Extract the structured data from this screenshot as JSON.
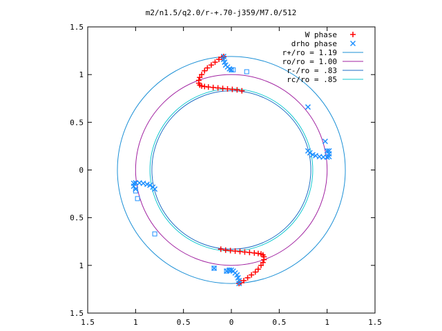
{
  "chart_data": {
    "type": "scatter",
    "title": "m2/n1.5/q2.0/r-+.70-j359/M7.0/512",
    "xlabel": "",
    "ylabel": "",
    "xlim": [
      -1.5,
      1.5
    ],
    "ylim": [
      -1.5,
      1.5
    ],
    "x_ticks": [
      -1.5,
      -1,
      -0.5,
      0,
      0.5,
      1,
      1.5
    ],
    "y_ticks": [
      -1.5,
      -1,
      -0.5,
      0,
      0.5,
      1,
      1.5
    ],
    "x_tick_labels": [
      "1.5",
      "1",
      "0.5",
      "0",
      "0.5",
      "1",
      "1.5"
    ],
    "y_tick_labels": [
      "1.5",
      "1",
      "0.5",
      "0",
      "0.5",
      "1",
      "1.5"
    ],
    "grid": false,
    "legend_position": "top-right",
    "colors": {
      "w_phase": "#ff0000",
      "drho_phase": "#1e90ff",
      "r_plus": "#1a8fd6",
      "ro": "#a020a0",
      "r_minus": "#1b6cc4",
      "rc": "#10c8d0"
    },
    "legend": [
      {
        "label": "W phase",
        "marker": "+",
        "color": "#ff0000"
      },
      {
        "label": "drho phase",
        "marker": "x",
        "color": "#1e90ff"
      },
      {
        "label": "r+/ro = 1.19",
        "marker": "line",
        "color": "#1a8fd6"
      },
      {
        "label": "ro/ro = 1.00",
        "marker": "line",
        "color": "#a020a0"
      },
      {
        "label": "r-/ro = .83",
        "marker": "line",
        "color": "#1b6cc4"
      },
      {
        "label": "rc/ro = .85",
        "marker": "line",
        "color": "#10c8d0"
      }
    ],
    "circles": [
      {
        "name": "r+/ro",
        "r": 1.19,
        "color": "#1a8fd6"
      },
      {
        "name": "ro/ro",
        "r": 1.0,
        "color": "#a020a0"
      },
      {
        "name": "r-/ro",
        "r": 0.83,
        "color": "#1b6cc4"
      },
      {
        "name": "rc/ro",
        "r": 0.85,
        "color": "#10c8d0"
      }
    ],
    "series": [
      {
        "name": "W phase",
        "marker": "+",
        "color": "#ff0000",
        "points": [
          [
            0.11,
            0.83
          ],
          [
            0.06,
            0.84
          ],
          [
            0.01,
            0.845
          ],
          [
            -0.04,
            0.85
          ],
          [
            -0.09,
            0.855
          ],
          [
            -0.14,
            0.86
          ],
          [
            -0.19,
            0.865
          ],
          [
            -0.24,
            0.87
          ],
          [
            -0.28,
            0.875
          ],
          [
            -0.31,
            0.88
          ],
          [
            -0.33,
            0.89
          ],
          [
            -0.34,
            0.91
          ],
          [
            -0.34,
            0.94
          ],
          [
            -0.33,
            0.97
          ],
          [
            -0.31,
            1.0
          ],
          [
            -0.28,
            1.04
          ],
          [
            -0.25,
            1.07
          ],
          [
            -0.21,
            1.1
          ],
          [
            -0.17,
            1.13
          ],
          [
            -0.13,
            1.16
          ],
          [
            -0.1,
            1.18
          ],
          [
            -0.08,
            1.19
          ],
          [
            -0.11,
            -0.83
          ],
          [
            -0.06,
            -0.84
          ],
          [
            -0.01,
            -0.845
          ],
          [
            0.04,
            -0.85
          ],
          [
            0.09,
            -0.855
          ],
          [
            0.14,
            -0.86
          ],
          [
            0.19,
            -0.865
          ],
          [
            0.24,
            -0.87
          ],
          [
            0.28,
            -0.875
          ],
          [
            0.31,
            -0.88
          ],
          [
            0.33,
            -0.89
          ],
          [
            0.34,
            -0.91
          ],
          [
            0.34,
            -0.94
          ],
          [
            0.33,
            -0.97
          ],
          [
            0.31,
            -1.0
          ],
          [
            0.28,
            -1.04
          ],
          [
            0.25,
            -1.07
          ],
          [
            0.21,
            -1.1
          ],
          [
            0.17,
            -1.13
          ],
          [
            0.13,
            -1.16
          ],
          [
            0.1,
            -1.18
          ],
          [
            0.08,
            -1.19
          ]
        ]
      },
      {
        "name": "drho phase",
        "marker": "x",
        "color": "#1e90ff",
        "points": [
          [
            -0.08,
            1.19
          ],
          [
            -0.08,
            1.16
          ],
          [
            -0.07,
            1.13
          ],
          [
            -0.06,
            1.1
          ],
          [
            -0.04,
            1.08
          ],
          [
            -0.02,
            1.06
          ],
          [
            0.0,
            1.05
          ],
          [
            0.08,
            -1.19
          ],
          [
            0.08,
            -1.16
          ],
          [
            0.07,
            -1.13
          ],
          [
            0.06,
            -1.1
          ],
          [
            0.04,
            -1.08
          ],
          [
            0.02,
            -1.06
          ],
          [
            0.0,
            -1.05
          ],
          [
            0.8,
            0.2
          ],
          [
            0.82,
            0.18
          ],
          [
            0.85,
            0.16
          ],
          [
            0.88,
            0.15
          ],
          [
            0.92,
            0.14
          ],
          [
            0.96,
            0.135
          ],
          [
            1.0,
            0.135
          ],
          [
            1.02,
            0.14
          ],
          [
            1.02,
            0.17
          ],
          [
            1.0,
            0.2
          ],
          [
            -0.8,
            -0.2
          ],
          [
            -0.82,
            -0.18
          ],
          [
            -0.85,
            -0.16
          ],
          [
            -0.88,
            -0.15
          ],
          [
            -0.92,
            -0.14
          ],
          [
            -0.96,
            -0.135
          ],
          [
            -1.0,
            -0.135
          ],
          [
            -1.02,
            -0.14
          ],
          [
            -1.02,
            -0.17
          ],
          [
            -1.0,
            -0.2
          ],
          [
            0.8,
            0.66
          ],
          [
            0.98,
            0.3
          ],
          [
            1.02,
            0.2
          ],
          [
            -0.18,
            -1.03
          ],
          [
            -0.05,
            -1.06
          ],
          [
            -0.02,
            -1.05
          ]
        ]
      },
      {
        "name": "",
        "marker": "square",
        "color": "#1e90ff",
        "points": [
          [
            0.0,
            1.05
          ],
          [
            0.02,
            1.05
          ],
          [
            0.16,
            1.03
          ],
          [
            -0.02,
            -1.05
          ],
          [
            -0.05,
            -1.06
          ],
          [
            -0.18,
            -1.03
          ],
          [
            -1.0,
            -0.22
          ],
          [
            -0.98,
            -0.3
          ],
          [
            -0.8,
            -0.67
          ]
        ]
      }
    ]
  }
}
